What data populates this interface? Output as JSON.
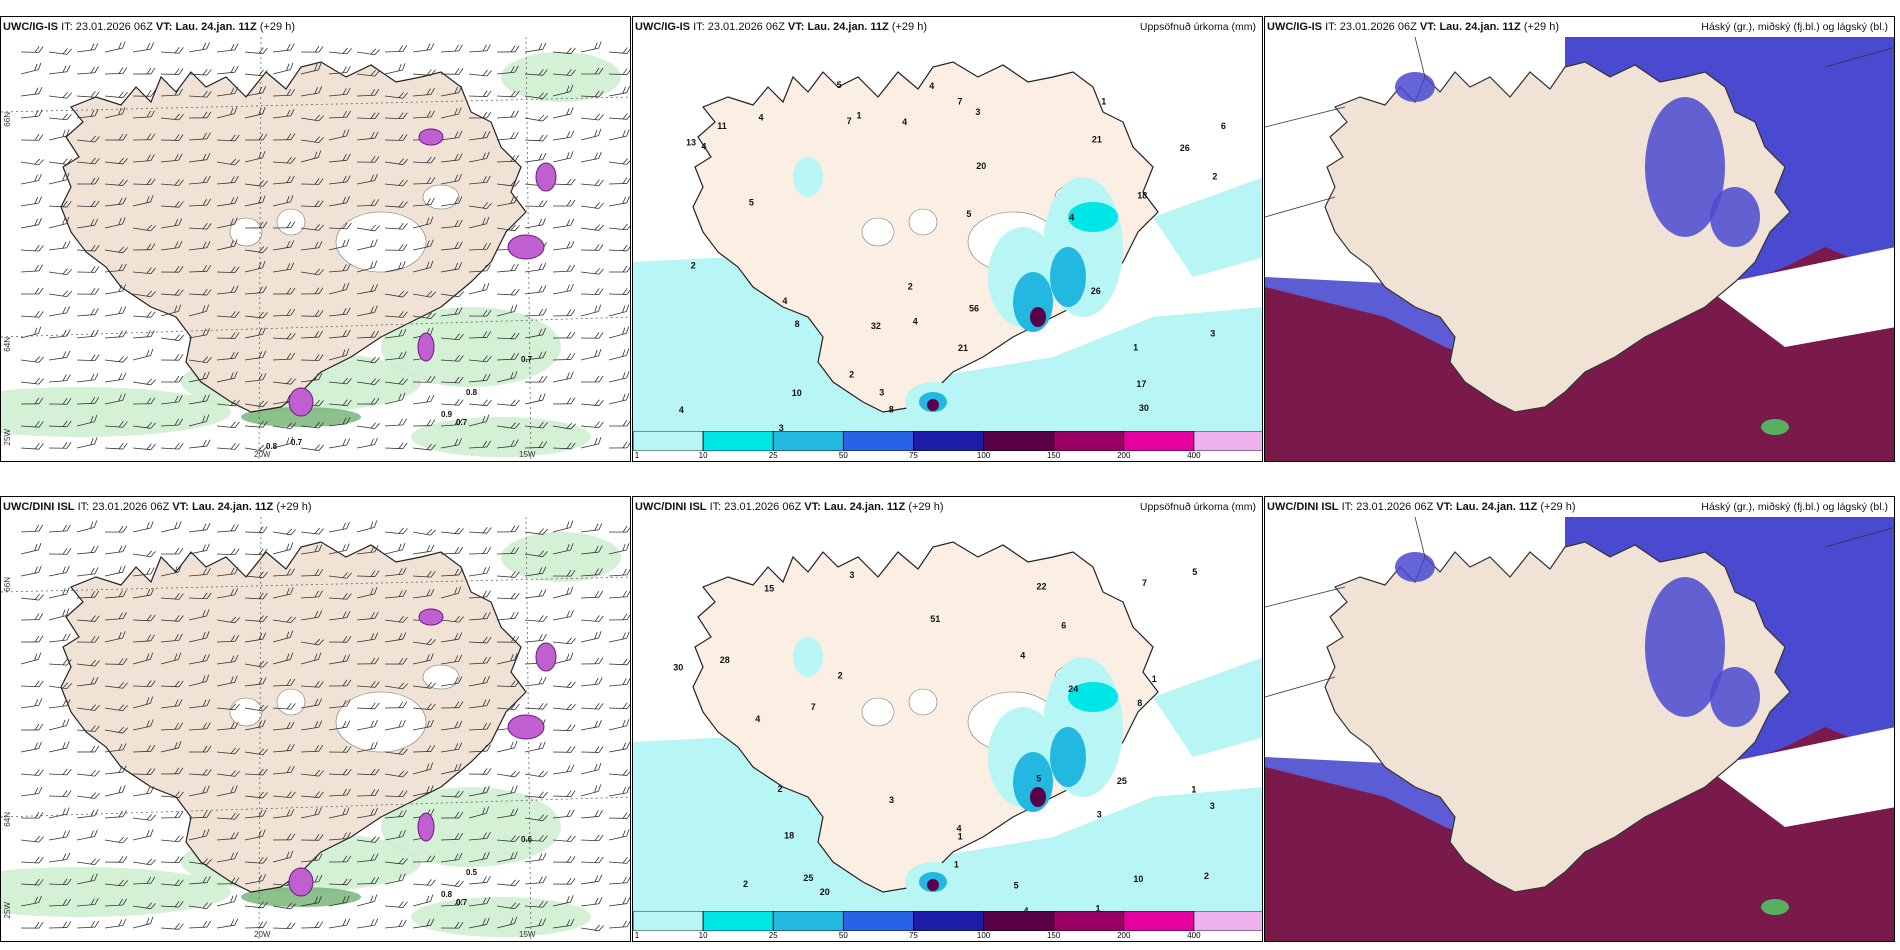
{
  "panels": [
    {
      "model": "UWC/IG-IS",
      "it_label": "IT:",
      "it": "23.01.2026 06Z",
      "vt_label": "VT:",
      "vt": "Lau. 24.jan. 11Z",
      "lead": "(+29 h)",
      "kind": "wind",
      "right": ""
    },
    {
      "model": "UWC/IG-IS",
      "it_label": "IT:",
      "it": "23.01.2026 06Z",
      "vt_label": "VT:",
      "vt": "Lau. 24.jan. 11Z",
      "lead": "(+29 h)",
      "kind": "precip",
      "right": "Uppsöfnuð úrkoma (mm)"
    },
    {
      "model": "UWC/IG-IS",
      "it_label": "IT:",
      "it": "23.01.2026 06Z",
      "vt_label": "VT:",
      "vt": "Lau. 24.jan. 11Z",
      "lead": "(+29 h)",
      "kind": "cloud",
      "right": "Háský (gr.), miðský (fj.bl.) og lágský (bl.)"
    },
    {
      "model": "UWC/DINI ISL",
      "it_label": "IT:",
      "it": "23.01.2026 06Z",
      "vt_label": "VT:",
      "vt": "Lau. 24.jan. 11Z",
      "lead": "(+29 h)",
      "kind": "wind",
      "right": ""
    },
    {
      "model": "UWC/DINI ISL",
      "it_label": "IT:",
      "it": "23.01.2026 06Z",
      "vt_label": "VT:",
      "vt": "Lau. 24.jan. 11Z",
      "lead": "(+29 h)",
      "kind": "precip",
      "right": "Uppsöfnuð úrkoma (mm)"
    },
    {
      "model": "UWC/DINI ISL",
      "it_label": "IT:",
      "it": "23.01.2026 06Z",
      "vt_label": "VT:",
      "vt": "Lau. 24.jan. 11Z",
      "lead": "(+29 h)",
      "kind": "cloud",
      "right": "Háský (gr.), miðský (fj.bl.) og lágský (bl.)"
    }
  ],
  "gridlabels": {
    "lat66": "66N",
    "lat64": "64N",
    "lon25": "25W",
    "lon20": "20W",
    "lon15": "15W"
  },
  "colorbar": {
    "ticks": [
      "1",
      "10",
      "25",
      "50",
      "75",
      "100",
      "150",
      "200",
      "400"
    ],
    "colors": [
      "#b8f5f5",
      "#00e6e6",
      "#22b8e0",
      "#2a62e6",
      "#1c1ca8",
      "#5a0048",
      "#9a0064",
      "#e600a0",
      "#f0b0f0"
    ]
  },
  "wind_values_top": [
    "0.7",
    "0.8",
    "0.9",
    "0.7",
    "0.8",
    "0.7"
  ],
  "wind_values_bot": [
    "0.6",
    "0.5",
    "0.8",
    "0.7"
  ],
  "precip_values_top": [
    "1",
    "1",
    "2",
    "3",
    "4",
    "3",
    "4",
    "4",
    "6",
    "8",
    "3",
    "2",
    "4",
    "7",
    "17",
    "20",
    "32",
    "26",
    "13",
    "30",
    "56",
    "18",
    "11",
    "2",
    "5",
    "4",
    "21",
    "26",
    "10",
    "4",
    "5",
    "1",
    "4",
    "3",
    "2",
    "7",
    "8",
    "21",
    "4",
    "5"
  ],
  "precip_values_bot": [
    "1",
    "1",
    "1",
    "2",
    "4",
    "2",
    "3",
    "6",
    "4",
    "8",
    "5",
    "7",
    "30",
    "24",
    "20",
    "15",
    "18",
    "25",
    "22",
    "51",
    "28",
    "25",
    "10",
    "4",
    "5",
    "4",
    "3",
    "3",
    "2",
    "7",
    "1",
    "1",
    "2",
    "5",
    "3"
  ],
  "colors": {
    "land": "#f0e2d4",
    "sea": "#ffffff",
    "precip_light": "#b8f5f5",
    "high_cloud": "#e1eee4",
    "mid_cloud": "#7a1a4a",
    "low_cloud": "#4a4ad0"
  }
}
